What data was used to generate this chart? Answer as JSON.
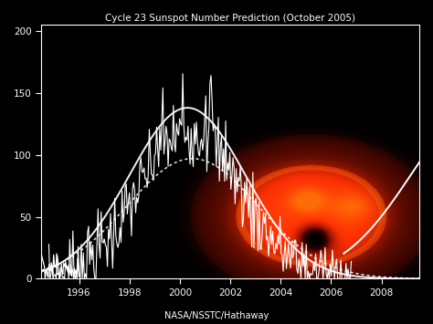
{
  "title": "Cycle 23 Sunspot Number Prediction (October 2005)",
  "credit": "NASA/NSSTC/Hathaway",
  "xlim": [
    1994.5,
    2009.5
  ],
  "ylim": [
    0,
    205
  ],
  "yticks": [
    0,
    50,
    100,
    150,
    200
  ],
  "xticks": [
    1996,
    1998,
    2000,
    2002,
    2004,
    2006,
    2008
  ],
  "bg_color": "#000000",
  "line_color": "#ffffff",
  "title_color": "#ffffff",
  "tick_color": "#ffffff",
  "credit_color": "#ffffff"
}
